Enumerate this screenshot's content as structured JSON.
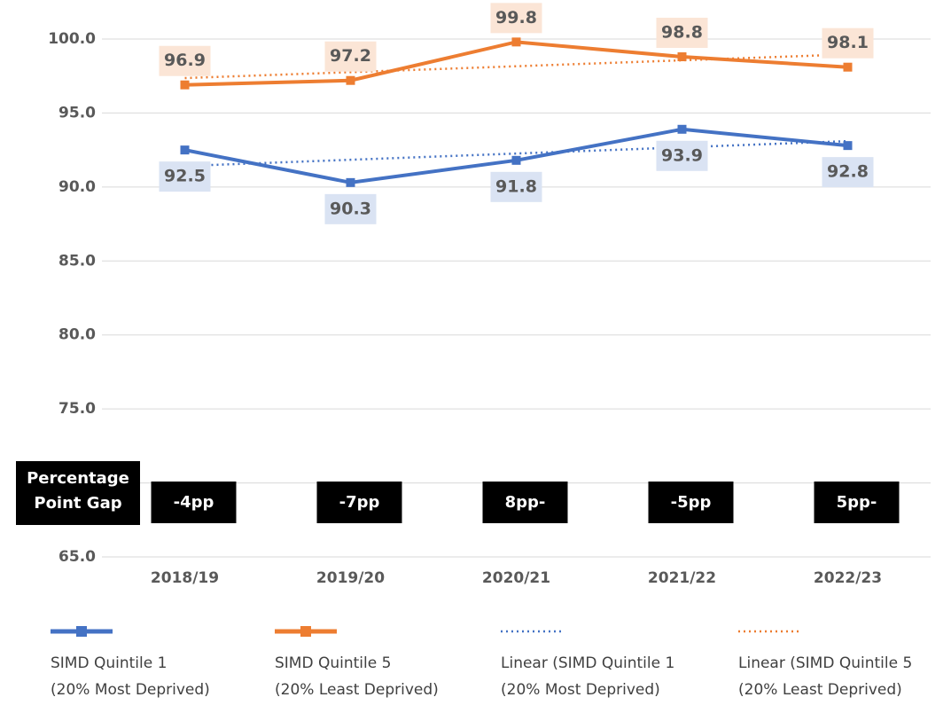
{
  "chart_data": {
    "type": "line",
    "categories": [
      "2018/19",
      "2019/20",
      "2020/21",
      "2021/22",
      "2022/23"
    ],
    "ylim": [
      65,
      100
    ],
    "yticks": [
      {
        "value": 65,
        "label": "65.0"
      },
      {
        "value": 70,
        "label": "70.0"
      },
      {
        "value": 75,
        "label": "75.0"
      },
      {
        "value": 80,
        "label": "80.0"
      },
      {
        "value": 85,
        "label": "85.0"
      },
      {
        "value": 90,
        "label": "90.0"
      },
      {
        "value": 95,
        "label": "95.0"
      },
      {
        "value": 100,
        "label": "100.0"
      }
    ],
    "grid": true,
    "series": [
      {
        "name": "SIMD Quintile 1\n(20% Most Deprived)",
        "color": "#4472c4",
        "style": "solid",
        "labels": "below",
        "label_bg": "#dae3f3",
        "values": [
          92.5,
          90.3,
          91.8,
          93.9,
          92.8
        ]
      },
      {
        "name": "SIMD Quintile 5\n(20% Least Deprived)",
        "color": "#ed7d31",
        "style": "solid",
        "labels": "above",
        "label_bg": "#fbe5d6",
        "values": [
          96.9,
          97.2,
          99.8,
          98.8,
          98.1
        ]
      },
      {
        "name": "Linear (SIMD Quintile 1\n(20% Most Deprived)",
        "color": "#4472c4",
        "style": "dotted",
        "values": [
          91.42,
          91.84,
          92.26,
          92.68,
          93.1
        ]
      },
      {
        "name": "Linear (SIMD Quintile 5\n(20% Least Deprived)",
        "color": "#ed7d31",
        "style": "dotted",
        "values": [
          97.36,
          97.76,
          98.16,
          98.56,
          98.96
        ]
      }
    ],
    "gap_title": "Percentage\nPoint Gap",
    "gap_labels": [
      "-4pp",
      "-7pp",
      "8pp-",
      "-5pp",
      "5pp-"
    ],
    "legend": "bottom"
  }
}
